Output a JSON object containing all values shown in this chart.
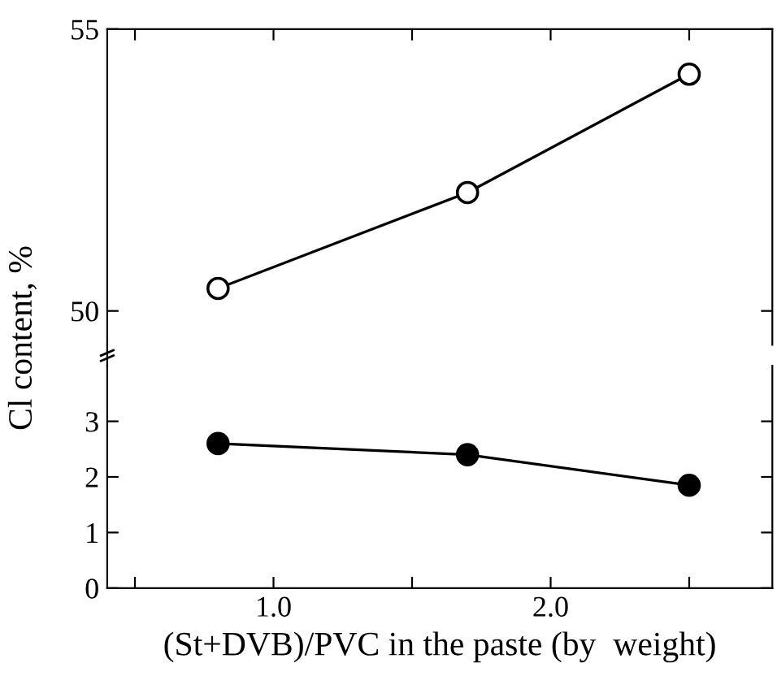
{
  "chart_data": [
    {
      "type": "line",
      "ylabel": "Cl content, %",
      "x": [
        0.8,
        1.7,
        2.5
      ],
      "series": [
        {
          "color": "#000000",
          "values": [
            50.4,
            52.1,
            54.2
          ]
        }
      ],
      "xlim": [
        0.4,
        2.8
      ],
      "xticks": [
        {
          "value": 0.5,
          "label": null
        },
        {
          "value": 1.0,
          "label": null
        },
        {
          "value": 1.5,
          "label": null
        },
        {
          "value": 2.0,
          "label": null
        },
        {
          "value": 2.5,
          "label": null
        }
      ],
      "ylim": [
        49.4,
        55
      ],
      "yticks": [
        50,
        55
      ],
      "tick_labels": "y",
      "marker": "circle",
      "line_style": "solid"
    },
    {
      "type": "line",
      "xlabel": "(St+DVB)/PVC in the paste (by  weight)",
      "x": [
        0.8,
        1.7,
        2.5
      ],
      "series": [
        {
          "color": "#000000",
          "values": [
            2.6,
            2.4,
            1.85
          ]
        }
      ],
      "xlim": [
        0.4,
        2.8
      ],
      "xticks": [
        {
          "value": 0.5,
          "label": null
        },
        {
          "value": 1.0,
          "label": "1.0"
        },
        {
          "value": 1.5,
          "label": null
        },
        {
          "value": 2.0,
          "label": "2.0"
        },
        {
          "value": 2.5,
          "label": null
        }
      ],
      "ylim": [
        0,
        4.0
      ],
      "yticks": [
        0,
        1,
        2,
        3
      ],
      "marker": "circle",
      "line_style": "solid"
    }
  ]
}
